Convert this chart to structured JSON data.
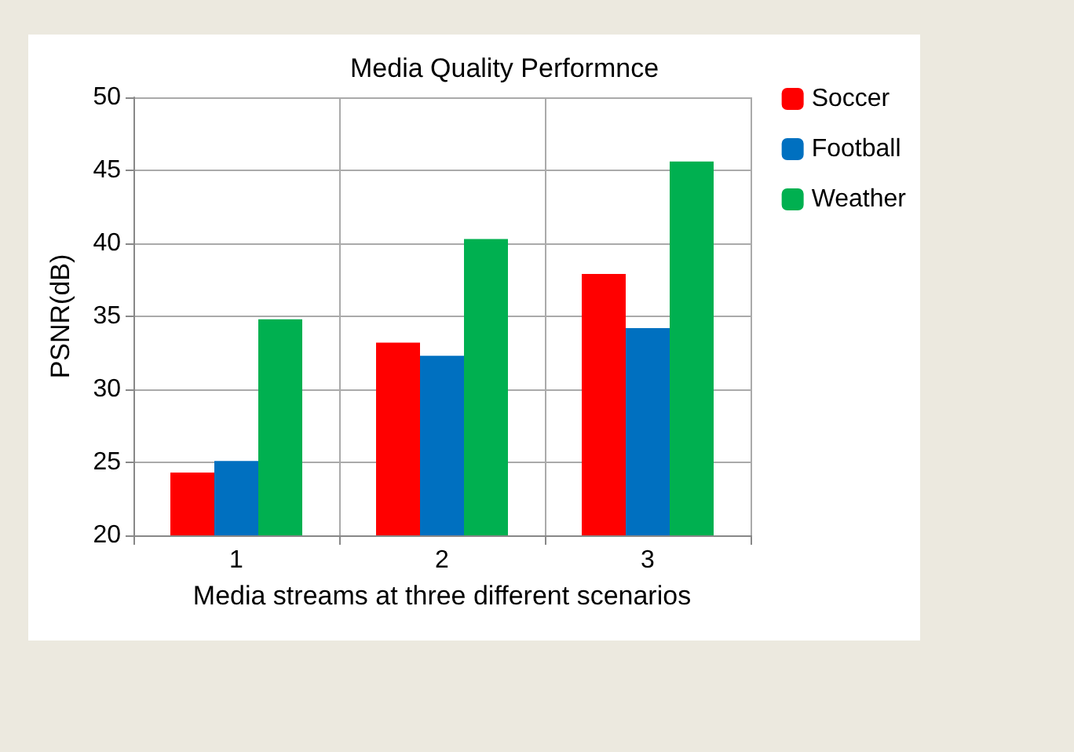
{
  "chart_data": {
    "type": "bar",
    "title": "Media Quality Performnce",
    "xlabel": "Media streams at three different scenarios",
    "ylabel": "PSNR(dB)",
    "categories": [
      "1",
      "2",
      "3"
    ],
    "series": [
      {
        "name": "Soccer",
        "color": "#ff0000",
        "values": [
          24.3,
          33.2,
          37.9
        ]
      },
      {
        "name": "Football",
        "color": "#0070c0",
        "values": [
          25.1,
          32.3,
          34.2
        ]
      },
      {
        "name": "Weather",
        "color": "#00b050",
        "values": [
          34.8,
          40.3,
          45.6
        ]
      }
    ],
    "ylim": [
      20,
      50
    ],
    "yticks": [
      20,
      25,
      30,
      35,
      40,
      45,
      50
    ],
    "grid": true,
    "legend": "top right"
  }
}
